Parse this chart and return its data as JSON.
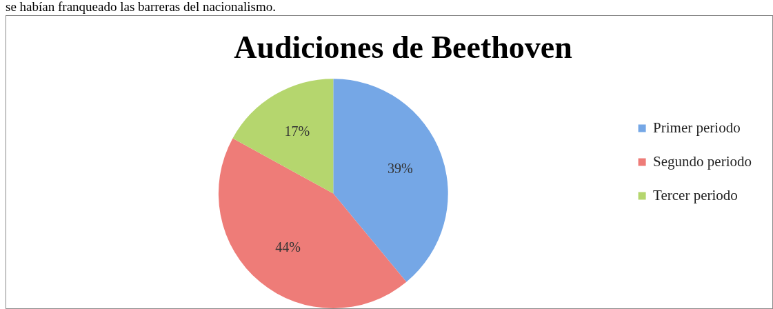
{
  "chart_data": {
    "type": "pie",
    "title": "Audiciones de Beethoven",
    "annotations": [
      "se habían franqueado las barreras del nacionalismo."
    ],
    "categories": [
      "Primer periodo",
      "Segundo periodo",
      "Tercer periodo"
    ],
    "values": [
      39,
      44,
      17
    ],
    "colors": [
      "#75a7e6",
      "#ee7c78",
      "#b5d66e"
    ],
    "value_labels": [
      "39%",
      "44%",
      "17%"
    ],
    "legend": "right"
  }
}
